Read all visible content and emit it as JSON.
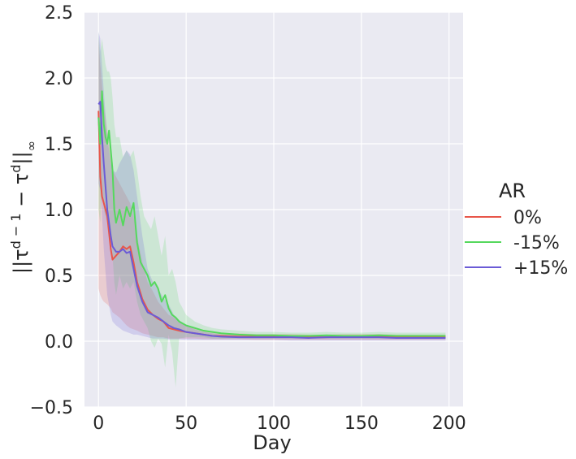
{
  "chart_data": {
    "type": "line",
    "xlabel": "Day",
    "ylabel": "||τ^{d-1} − τ^{d}||∞",
    "xlim": [
      -8,
      208
    ],
    "ylim": [
      -0.5,
      2.5
    ],
    "xticks": [
      0,
      50,
      100,
      150,
      200
    ],
    "xtick_labels": [
      "0",
      "50",
      "100",
      "150",
      "200"
    ],
    "yticks": [
      -0.5,
      0.0,
      0.5,
      1.0,
      1.5,
      2.0,
      2.5
    ],
    "ytick_labels": [
      "−0.5",
      "0.0",
      "0.5",
      "1.0",
      "1.5",
      "2.0",
      "2.5"
    ],
    "grid": true,
    "legend": {
      "title": "AR",
      "placement": "right"
    },
    "series": [
      {
        "name": "0%",
        "color": "#e8564a",
        "x": [
          0,
          1,
          2,
          3,
          5,
          7,
          8,
          10,
          12,
          14,
          16,
          18,
          20,
          22,
          25,
          28,
          31,
          34,
          37,
          40,
          43,
          46,
          50,
          55,
          60,
          65,
          70,
          80,
          90,
          100,
          110,
          120,
          130,
          140,
          150,
          160,
          170,
          180,
          190,
          198
        ],
        "y": [
          1.75,
          1.25,
          1.1,
          1.05,
          0.95,
          0.7,
          0.62,
          0.65,
          0.68,
          0.72,
          0.7,
          0.72,
          0.6,
          0.45,
          0.32,
          0.24,
          0.2,
          0.17,
          0.15,
          0.1,
          0.09,
          0.08,
          0.07,
          0.06,
          0.05,
          0.04,
          0.04,
          0.035,
          0.035,
          0.035,
          0.035,
          0.03,
          0.03,
          0.035,
          0.035,
          0.035,
          0.03,
          0.03,
          0.03,
          0.03
        ],
        "lower": [
          0.4,
          0.35,
          0.32,
          0.3,
          0.28,
          0.25,
          0.22,
          0.2,
          0.18,
          0.15,
          0.12,
          0.1,
          0.09,
          0.08,
          0.06,
          0.05,
          0.04,
          0.03,
          0.03,
          0.02,
          0.02,
          0.02,
          0.02,
          0.02,
          0.015,
          0.015,
          0.015,
          0.015,
          0.01,
          0.01,
          0.01,
          0.01,
          0.01,
          0.01,
          0.01,
          0.01,
          0.01,
          0.01,
          0.01,
          0.01
        ],
        "upper": [
          2.3,
          2.1,
          1.95,
          1.8,
          1.6,
          1.4,
          1.3,
          1.25,
          1.2,
          1.15,
          1.1,
          1.05,
          0.95,
          0.8,
          0.6,
          0.45,
          0.38,
          0.3,
          0.25,
          0.2,
          0.18,
          0.15,
          0.12,
          0.1,
          0.08,
          0.07,
          0.06,
          0.06,
          0.055,
          0.055,
          0.055,
          0.05,
          0.05,
          0.055,
          0.055,
          0.055,
          0.05,
          0.05,
          0.05,
          0.05
        ]
      },
      {
        "name": "-15%",
        "color": "#55d85d",
        "x": [
          0,
          1,
          2,
          3,
          4,
          5,
          6,
          7,
          8,
          9,
          10,
          12,
          14,
          16,
          18,
          20,
          22,
          24,
          26,
          28,
          30,
          32,
          34,
          36,
          38,
          40,
          42,
          44,
          46,
          50,
          55,
          60,
          65,
          70,
          80,
          90,
          100,
          110,
          120,
          130,
          140,
          150,
          160,
          170,
          180,
          190,
          198
        ],
        "y": [
          1.7,
          1.5,
          1.9,
          1.65,
          1.55,
          1.5,
          1.6,
          1.45,
          1.3,
          1.0,
          0.9,
          1.0,
          0.88,
          1.02,
          0.95,
          1.05,
          0.75,
          0.6,
          0.55,
          0.5,
          0.42,
          0.45,
          0.4,
          0.3,
          0.35,
          0.25,
          0.2,
          0.18,
          0.15,
          0.12,
          0.1,
          0.08,
          0.07,
          0.06,
          0.05,
          0.045,
          0.045,
          0.04,
          0.04,
          0.045,
          0.04,
          0.04,
          0.045,
          0.04,
          0.04,
          0.04,
          0.04
        ],
        "lower": [
          1.0,
          0.9,
          1.2,
          1.0,
          0.95,
          0.9,
          0.85,
          0.8,
          0.65,
          0.45,
          0.35,
          0.5,
          0.4,
          0.45,
          0.4,
          0.45,
          0.3,
          0.2,
          0.15,
          0.1,
          0.0,
          -0.05,
          0.02,
          -0.02,
          -0.2,
          0.05,
          -0.08,
          -0.35,
          0.02,
          0.03,
          0.03,
          0.03,
          0.02,
          0.02,
          0.02,
          0.02,
          0.02,
          0.02,
          0.02,
          0.02,
          0.02,
          0.02,
          0.02,
          0.02,
          0.02,
          0.02,
          0.02
        ],
        "upper": [
          2.35,
          2.2,
          2.3,
          2.2,
          2.1,
          2.05,
          2.05,
          2.0,
          1.85,
          1.65,
          1.55,
          1.55,
          1.4,
          1.45,
          1.4,
          1.45,
          1.3,
          1.1,
          0.95,
          0.9,
          0.85,
          0.95,
          0.8,
          0.65,
          0.8,
          0.5,
          0.55,
          0.45,
          0.3,
          0.2,
          0.15,
          0.12,
          0.1,
          0.09,
          0.08,
          0.07,
          0.07,
          0.065,
          0.065,
          0.07,
          0.065,
          0.065,
          0.07,
          0.065,
          0.065,
          0.065,
          0.065
        ]
      },
      {
        "name": "+15%",
        "color": "#6b5bd6",
        "x": [
          0,
          1,
          2,
          3,
          5,
          7,
          8,
          10,
          12,
          14,
          16,
          18,
          20,
          22,
          25,
          28,
          31,
          34,
          37,
          40,
          43,
          46,
          50,
          55,
          60,
          65,
          70,
          80,
          90,
          100,
          110,
          120,
          130,
          140,
          150,
          160,
          170,
          180,
          190,
          198
        ],
        "y": [
          1.8,
          1.82,
          1.55,
          1.35,
          1.0,
          0.8,
          0.72,
          0.68,
          0.68,
          0.7,
          0.67,
          0.68,
          0.55,
          0.42,
          0.3,
          0.22,
          0.2,
          0.18,
          0.15,
          0.12,
          0.1,
          0.09,
          0.07,
          0.06,
          0.05,
          0.04,
          0.035,
          0.03,
          0.03,
          0.03,
          0.03,
          0.025,
          0.03,
          0.03,
          0.03,
          0.03,
          0.025,
          0.025,
          0.025,
          0.025
        ],
        "lower": [
          1.2,
          1.15,
          0.95,
          0.7,
          0.35,
          0.2,
          0.15,
          0.12,
          0.1,
          0.08,
          0.07,
          0.06,
          0.05,
          0.05,
          0.04,
          0.03,
          0.02,
          0.02,
          0.02,
          0.015,
          0.015,
          0.015,
          0.01,
          0.01,
          0.01,
          0.01,
          0.01,
          0.01,
          0.01,
          0.01,
          0.005,
          0.005,
          0.005,
          0.005,
          0.005,
          0.005,
          0.005,
          0.005,
          0.005,
          0.005
        ],
        "upper": [
          2.35,
          2.3,
          2.1,
          1.9,
          1.55,
          1.35,
          1.3,
          1.28,
          1.35,
          1.4,
          1.45,
          1.42,
          1.3,
          1.1,
          0.8,
          0.55,
          0.45,
          0.4,
          0.33,
          0.28,
          0.2,
          0.16,
          0.12,
          0.09,
          0.07,
          0.06,
          0.05,
          0.045,
          0.045,
          0.045,
          0.045,
          0.04,
          0.045,
          0.045,
          0.045,
          0.045,
          0.04,
          0.04,
          0.04,
          0.04
        ]
      }
    ]
  }
}
